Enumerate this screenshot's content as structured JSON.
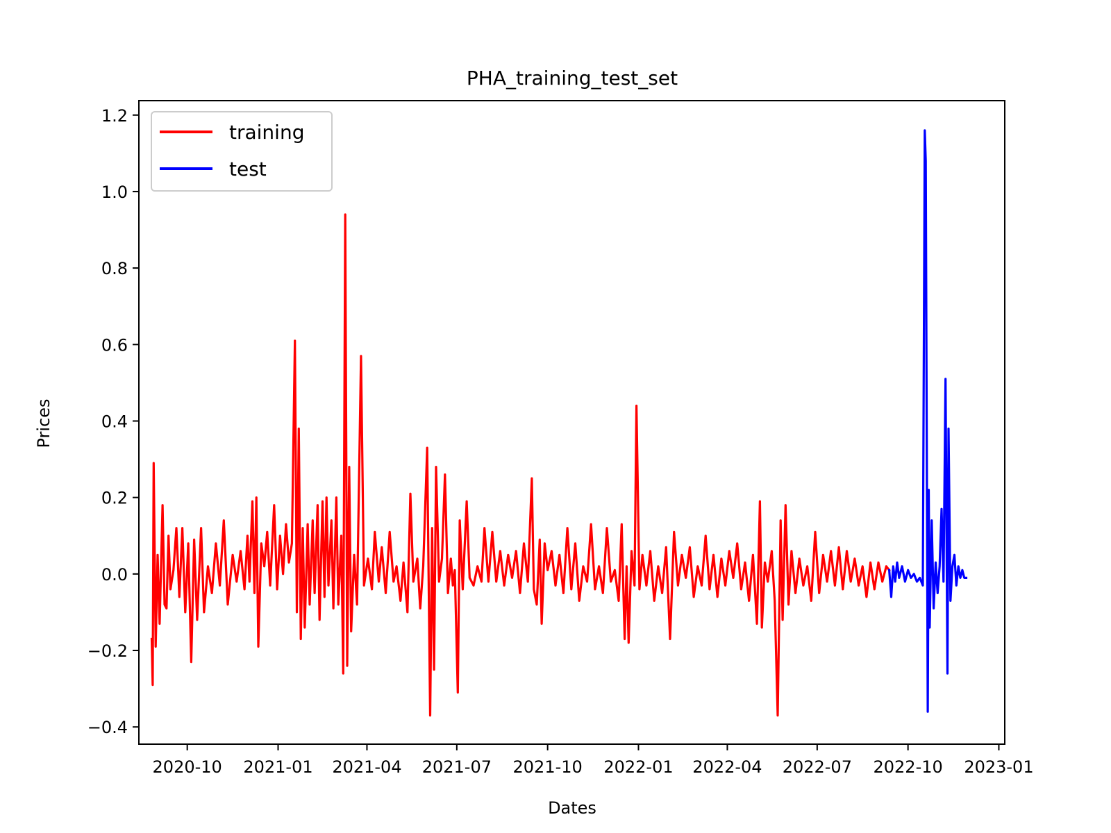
{
  "chart_data": {
    "type": "line",
    "title": "PHA_training_test_set",
    "xlabel": "Dates",
    "ylabel": "Prices",
    "xlim": [
      "2020-08-13",
      "2023-01-07"
    ],
    "ylim": [
      -0.445,
      1.2377
    ],
    "grid": false,
    "legend_position": "top-left",
    "x_ticks": [
      "2020-10",
      "2021-01",
      "2021-04",
      "2021-07",
      "2021-10",
      "2022-01",
      "2022-04",
      "2022-07",
      "2022-10",
      "2023-01"
    ],
    "y_ticks": [
      -0.4,
      -0.2,
      0.0,
      0.2,
      0.4,
      0.6,
      0.8,
      1.0,
      1.2
    ],
    "y_tick_labels": [
      "−0.4",
      "−0.2",
      "0.0",
      "0.2",
      "0.4",
      "0.6",
      "0.8",
      "1.0",
      "1.2"
    ],
    "series": [
      {
        "name": "training",
        "color": "#ff0000",
        "points": [
          [
            "2020-08-26",
            -0.17
          ],
          [
            "2020-08-27",
            -0.29
          ],
          [
            "2020-08-28",
            0.29
          ],
          [
            "2020-08-30",
            -0.19
          ],
          [
            "2020-09-01",
            0.05
          ],
          [
            "2020-09-03",
            -0.13
          ],
          [
            "2020-09-06",
            0.18
          ],
          [
            "2020-09-08",
            -0.08
          ],
          [
            "2020-09-10",
            -0.09
          ],
          [
            "2020-09-12",
            0.1
          ],
          [
            "2020-09-14",
            -0.04
          ],
          [
            "2020-09-17",
            0.01
          ],
          [
            "2020-09-20",
            0.12
          ],
          [
            "2020-09-23",
            -0.06
          ],
          [
            "2020-09-26",
            0.12
          ],
          [
            "2020-09-29",
            -0.1
          ],
          [
            "2020-10-02",
            0.08
          ],
          [
            "2020-10-05",
            -0.23
          ],
          [
            "2020-10-08",
            0.09
          ],
          [
            "2020-10-11",
            -0.12
          ],
          [
            "2020-10-15",
            0.12
          ],
          [
            "2020-10-18",
            -0.1
          ],
          [
            "2020-10-22",
            0.02
          ],
          [
            "2020-10-26",
            -0.05
          ],
          [
            "2020-10-30",
            0.08
          ],
          [
            "2020-11-03",
            -0.03
          ],
          [
            "2020-11-07",
            0.14
          ],
          [
            "2020-11-11",
            -0.08
          ],
          [
            "2020-11-16",
            0.05
          ],
          [
            "2020-11-20",
            -0.02
          ],
          [
            "2020-11-24",
            0.06
          ],
          [
            "2020-11-28",
            -0.04
          ],
          [
            "2020-12-01",
            0.1
          ],
          [
            "2020-12-03",
            -0.02
          ],
          [
            "2020-12-06",
            0.19
          ],
          [
            "2020-12-08",
            -0.05
          ],
          [
            "2020-12-10",
            0.2
          ],
          [
            "2020-12-12",
            -0.19
          ],
          [
            "2020-12-15",
            0.08
          ],
          [
            "2020-12-18",
            0.02
          ],
          [
            "2020-12-21",
            0.11
          ],
          [
            "2020-12-24",
            -0.03
          ],
          [
            "2020-12-28",
            0.18
          ],
          [
            "2020-12-31",
            -0.04
          ],
          [
            "2021-01-03",
            0.1
          ],
          [
            "2021-01-06",
            0.0
          ],
          [
            "2021-01-09",
            0.13
          ],
          [
            "2021-01-12",
            0.03
          ],
          [
            "2021-01-15",
            0.08
          ],
          [
            "2021-01-18",
            0.61
          ],
          [
            "2021-01-20",
            -0.1
          ],
          [
            "2021-01-22",
            0.38
          ],
          [
            "2021-01-24",
            -0.17
          ],
          [
            "2021-01-26",
            0.12
          ],
          [
            "2021-01-28",
            -0.14
          ],
          [
            "2021-01-31",
            0.13
          ],
          [
            "2021-02-02",
            -0.08
          ],
          [
            "2021-02-05",
            0.14
          ],
          [
            "2021-02-07",
            -0.05
          ],
          [
            "2021-02-10",
            0.18
          ],
          [
            "2021-02-12",
            -0.12
          ],
          [
            "2021-02-15",
            0.19
          ],
          [
            "2021-02-17",
            -0.06
          ],
          [
            "2021-02-19",
            0.2
          ],
          [
            "2021-02-21",
            -0.03
          ],
          [
            "2021-02-24",
            0.14
          ],
          [
            "2021-02-26",
            -0.09
          ],
          [
            "2021-03-01",
            0.2
          ],
          [
            "2021-03-03",
            -0.08
          ],
          [
            "2021-03-06",
            0.1
          ],
          [
            "2021-03-08",
            -0.26
          ],
          [
            "2021-03-10",
            0.94
          ],
          [
            "2021-03-12",
            -0.24
          ],
          [
            "2021-03-14",
            0.28
          ],
          [
            "2021-03-16",
            -0.15
          ],
          [
            "2021-03-19",
            0.05
          ],
          [
            "2021-03-22",
            -0.08
          ],
          [
            "2021-03-26",
            0.57
          ],
          [
            "2021-03-29",
            -0.03
          ],
          [
            "2021-04-02",
            0.04
          ],
          [
            "2021-04-06",
            -0.04
          ],
          [
            "2021-04-09",
            0.11
          ],
          [
            "2021-04-13",
            -0.02
          ],
          [
            "2021-04-16",
            0.07
          ],
          [
            "2021-04-20",
            -0.05
          ],
          [
            "2021-04-24",
            0.11
          ],
          [
            "2021-04-28",
            -0.02
          ],
          [
            "2021-05-01",
            0.02
          ],
          [
            "2021-05-05",
            -0.07
          ],
          [
            "2021-05-08",
            0.03
          ],
          [
            "2021-05-12",
            -0.1
          ],
          [
            "2021-05-15",
            0.21
          ],
          [
            "2021-05-18",
            -0.02
          ],
          [
            "2021-05-22",
            0.04
          ],
          [
            "2021-05-25",
            -0.09
          ],
          [
            "2021-05-28",
            0.02
          ],
          [
            "2021-06-01",
            0.33
          ],
          [
            "2021-06-04",
            -0.37
          ],
          [
            "2021-06-06",
            0.12
          ],
          [
            "2021-06-08",
            -0.25
          ],
          [
            "2021-06-10",
            0.28
          ],
          [
            "2021-06-13",
            -0.02
          ],
          [
            "2021-06-16",
            0.04
          ],
          [
            "2021-06-19",
            0.26
          ],
          [
            "2021-06-22",
            -0.05
          ],
          [
            "2021-06-25",
            0.04
          ],
          [
            "2021-06-27",
            -0.03
          ],
          [
            "2021-06-29",
            0.01
          ],
          [
            "2021-07-02",
            -0.31
          ],
          [
            "2021-07-04",
            0.14
          ],
          [
            "2021-07-07",
            -0.04
          ],
          [
            "2021-07-11",
            0.19
          ],
          [
            "2021-07-14",
            -0.01
          ],
          [
            "2021-07-18",
            -0.03
          ],
          [
            "2021-07-22",
            0.02
          ],
          [
            "2021-07-26",
            -0.02
          ],
          [
            "2021-07-29",
            0.12
          ],
          [
            "2021-08-02",
            -0.02
          ],
          [
            "2021-08-06",
            0.11
          ],
          [
            "2021-08-10",
            -0.02
          ],
          [
            "2021-08-14",
            0.06
          ],
          [
            "2021-08-18",
            -0.03
          ],
          [
            "2021-08-22",
            0.05
          ],
          [
            "2021-08-26",
            -0.01
          ],
          [
            "2021-08-30",
            0.06
          ],
          [
            "2021-09-03",
            -0.05
          ],
          [
            "2021-09-07",
            0.08
          ],
          [
            "2021-09-11",
            -0.02
          ],
          [
            "2021-09-15",
            0.25
          ],
          [
            "2021-09-17",
            -0.04
          ],
          [
            "2021-09-20",
            -0.08
          ],
          [
            "2021-09-23",
            0.09
          ],
          [
            "2021-09-25",
            -0.13
          ],
          [
            "2021-09-28",
            0.08
          ],
          [
            "2021-10-01",
            0.01
          ],
          [
            "2021-10-05",
            0.06
          ],
          [
            "2021-10-09",
            -0.03
          ],
          [
            "2021-10-13",
            0.05
          ],
          [
            "2021-10-17",
            -0.05
          ],
          [
            "2021-10-21",
            0.12
          ],
          [
            "2021-10-25",
            -0.04
          ],
          [
            "2021-10-29",
            0.08
          ],
          [
            "2021-11-02",
            -0.07
          ],
          [
            "2021-11-06",
            0.02
          ],
          [
            "2021-11-10",
            -0.02
          ],
          [
            "2021-11-14",
            0.13
          ],
          [
            "2021-11-18",
            -0.04
          ],
          [
            "2021-11-22",
            0.02
          ],
          [
            "2021-11-26",
            -0.05
          ],
          [
            "2021-11-30",
            0.12
          ],
          [
            "2021-12-04",
            -0.02
          ],
          [
            "2021-12-08",
            0.01
          ],
          [
            "2021-12-12",
            -0.07
          ],
          [
            "2021-12-15",
            0.13
          ],
          [
            "2021-12-18",
            -0.17
          ],
          [
            "2021-12-20",
            0.02
          ],
          [
            "2021-12-22",
            -0.18
          ],
          [
            "2021-12-25",
            0.06
          ],
          [
            "2021-12-28",
            -0.03
          ],
          [
            "2021-12-30",
            0.44
          ],
          [
            "2022-01-02",
            -0.04
          ],
          [
            "2022-01-05",
            0.05
          ],
          [
            "2022-01-09",
            -0.03
          ],
          [
            "2022-01-13",
            0.06
          ],
          [
            "2022-01-17",
            -0.07
          ],
          [
            "2022-01-21",
            0.02
          ],
          [
            "2022-01-25",
            -0.05
          ],
          [
            "2022-01-29",
            0.07
          ],
          [
            "2022-02-02",
            -0.17
          ],
          [
            "2022-02-06",
            0.11
          ],
          [
            "2022-02-10",
            -0.03
          ],
          [
            "2022-02-14",
            0.05
          ],
          [
            "2022-02-18",
            -0.01
          ],
          [
            "2022-02-22",
            0.07
          ],
          [
            "2022-02-26",
            -0.06
          ],
          [
            "2022-03-02",
            0.02
          ],
          [
            "2022-03-06",
            -0.03
          ],
          [
            "2022-03-10",
            0.1
          ],
          [
            "2022-03-14",
            -0.04
          ],
          [
            "2022-03-18",
            0.05
          ],
          [
            "2022-03-22",
            -0.06
          ],
          [
            "2022-03-26",
            0.04
          ],
          [
            "2022-03-30",
            -0.03
          ],
          [
            "2022-04-03",
            0.06
          ],
          [
            "2022-04-07",
            -0.01
          ],
          [
            "2022-04-11",
            0.08
          ],
          [
            "2022-04-15",
            -0.04
          ],
          [
            "2022-04-19",
            0.03
          ],
          [
            "2022-04-23",
            -0.07
          ],
          [
            "2022-04-27",
            0.05
          ],
          [
            "2022-05-01",
            -0.13
          ],
          [
            "2022-05-04",
            0.19
          ],
          [
            "2022-05-06",
            -0.14
          ],
          [
            "2022-05-09",
            0.03
          ],
          [
            "2022-05-12",
            -0.02
          ],
          [
            "2022-05-16",
            0.06
          ],
          [
            "2022-05-19",
            -0.07
          ],
          [
            "2022-05-22",
            -0.37
          ],
          [
            "2022-05-25",
            0.14
          ],
          [
            "2022-05-27",
            -0.12
          ],
          [
            "2022-05-30",
            0.18
          ],
          [
            "2022-06-02",
            -0.08
          ],
          [
            "2022-06-05",
            0.06
          ],
          [
            "2022-06-09",
            -0.05
          ],
          [
            "2022-06-13",
            0.04
          ],
          [
            "2022-06-17",
            -0.03
          ],
          [
            "2022-06-21",
            0.02
          ],
          [
            "2022-06-25",
            -0.07
          ],
          [
            "2022-06-29",
            0.11
          ],
          [
            "2022-07-03",
            -0.05
          ],
          [
            "2022-07-07",
            0.05
          ],
          [
            "2022-07-11",
            -0.02
          ],
          [
            "2022-07-15",
            0.06
          ],
          [
            "2022-07-19",
            -0.03
          ],
          [
            "2022-07-23",
            0.07
          ],
          [
            "2022-07-27",
            -0.04
          ],
          [
            "2022-07-31",
            0.06
          ],
          [
            "2022-08-04",
            -0.02
          ],
          [
            "2022-08-08",
            0.04
          ],
          [
            "2022-08-12",
            -0.03
          ],
          [
            "2022-08-16",
            0.02
          ],
          [
            "2022-08-20",
            -0.06
          ],
          [
            "2022-08-24",
            0.03
          ],
          [
            "2022-08-28",
            -0.04
          ],
          [
            "2022-09-01",
            0.03
          ],
          [
            "2022-09-05",
            -0.02
          ],
          [
            "2022-09-09",
            0.02
          ],
          [
            "2022-09-12",
            0.01
          ]
        ]
      },
      {
        "name": "test",
        "color": "#0000ff",
        "points": [
          [
            "2022-09-12",
            0.01
          ],
          [
            "2022-09-14",
            -0.06
          ],
          [
            "2022-09-16",
            0.02
          ],
          [
            "2022-09-18",
            -0.02
          ],
          [
            "2022-09-20",
            0.03
          ],
          [
            "2022-09-22",
            -0.01
          ],
          [
            "2022-09-25",
            0.02
          ],
          [
            "2022-09-28",
            -0.02
          ],
          [
            "2022-10-01",
            0.01
          ],
          [
            "2022-10-04",
            -0.01
          ],
          [
            "2022-10-07",
            0.0
          ],
          [
            "2022-10-10",
            -0.02
          ],
          [
            "2022-10-13",
            -0.01
          ],
          [
            "2022-10-16",
            -0.03
          ],
          [
            "2022-10-18",
            1.16
          ],
          [
            "2022-10-19",
            1.08
          ],
          [
            "2022-10-21",
            -0.36
          ],
          [
            "2022-10-22",
            0.22
          ],
          [
            "2022-10-23",
            -0.14
          ],
          [
            "2022-10-25",
            0.14
          ],
          [
            "2022-10-27",
            -0.09
          ],
          [
            "2022-10-29",
            0.03
          ],
          [
            "2022-10-31",
            -0.05
          ],
          [
            "2022-11-02",
            0.02
          ],
          [
            "2022-11-04",
            0.17
          ],
          [
            "2022-11-06",
            -0.02
          ],
          [
            "2022-11-08",
            0.51
          ],
          [
            "2022-11-10",
            -0.26
          ],
          [
            "2022-11-11",
            0.38
          ],
          [
            "2022-11-13",
            -0.07
          ],
          [
            "2022-11-15",
            0.02
          ],
          [
            "2022-11-17",
            0.05
          ],
          [
            "2022-11-19",
            -0.03
          ],
          [
            "2022-11-21",
            0.02
          ],
          [
            "2022-11-23",
            -0.01
          ],
          [
            "2022-11-25",
            0.01
          ],
          [
            "2022-11-27",
            -0.01
          ],
          [
            "2022-11-29",
            -0.01
          ]
        ]
      }
    ]
  }
}
